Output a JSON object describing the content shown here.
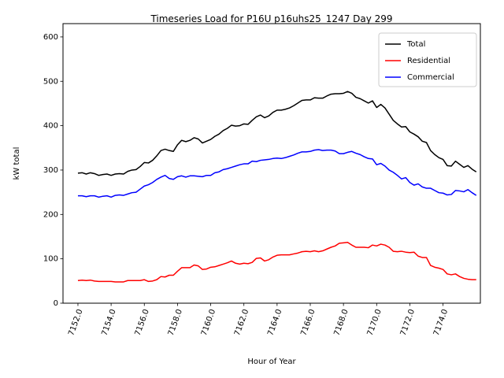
{
  "chart_data": {
    "type": "line",
    "title": "Timeseries Load for P16U p16uhs25_1247  Day 299",
    "xlabel": "Hour of Year",
    "ylabel": "kW total",
    "xlim": [
      7151.1,
      7176.25
    ],
    "ylim": [
      0,
      630
    ],
    "xticks": [
      7152,
      7154,
      7156,
      7158,
      7160,
      7162,
      7164,
      7166,
      7168,
      7170,
      7172,
      7174
    ],
    "xtick_labels": [
      "7152.0",
      "7154.0",
      "7156.0",
      "7158.0",
      "7160.0",
      "7162.0",
      "7164.0",
      "7166.0",
      "7168.0",
      "7170.0",
      "7172.0",
      "7174.0"
    ],
    "yticks": [
      0,
      100,
      200,
      300,
      400,
      500,
      600
    ],
    "ytick_labels": [
      "0",
      "100",
      "200",
      "300",
      "400",
      "500",
      "600"
    ],
    "legend_position": "top-right",
    "x_start": 7152.0,
    "x_step": 0.25,
    "series": [
      {
        "name": "Total",
        "color": "#000000",
        "values": [
          293,
          294,
          291,
          294,
          292,
          288,
          290,
          291,
          288,
          291,
          292,
          291,
          297,
          300,
          301,
          308,
          317,
          316,
          322,
          332,
          344,
          347,
          344,
          342,
          357,
          367,
          364,
          367,
          373,
          370,
          361,
          365,
          369,
          376,
          381,
          389,
          394,
          401,
          399,
          400,
          404,
          403,
          412,
          420,
          424,
          418,
          422,
          430,
          435,
          435,
          437,
          440,
          445,
          451,
          457,
          458,
          458,
          463,
          462,
          462,
          467,
          471,
          472,
          472,
          473,
          477,
          473,
          464,
          461,
          456,
          451,
          456,
          441,
          448,
          440,
          426,
          412,
          404,
          397,
          398,
          386,
          381,
          375,
          365,
          362,
          344,
          335,
          328,
          324,
          310,
          309,
          320,
          313,
          306,
          310,
          302,
          296
        ]
      },
      {
        "name": "Residential",
        "color": "#ff0000",
        "values": [
          51,
          52,
          51,
          52,
          50,
          49,
          49,
          49,
          49,
          48,
          48,
          48,
          51,
          51,
          51,
          51,
          53,
          49,
          50,
          53,
          60,
          59,
          63,
          63,
          72,
          80,
          80,
          80,
          86,
          84,
          76,
          77,
          81,
          82,
          85,
          88,
          91,
          95,
          90,
          88,
          90,
          89,
          92,
          101,
          102,
          95,
          98,
          104,
          108,
          109,
          109,
          109,
          111,
          113,
          116,
          117,
          116,
          118,
          116,
          118,
          122,
          126,
          129,
          135,
          136,
          137,
          131,
          126,
          126,
          126,
          125,
          131,
          129,
          133,
          131,
          126,
          117,
          116,
          117,
          115,
          114,
          115,
          106,
          103,
          103,
          85,
          81,
          79,
          76,
          66,
          64,
          66,
          60,
          56,
          54,
          53,
          53
        ]
      },
      {
        "name": "Commercial",
        "color": "#0000ff",
        "values": [
          242,
          242,
          240,
          242,
          242,
          239,
          241,
          242,
          239,
          243,
          244,
          243,
          246,
          249,
          250,
          257,
          264,
          267,
          272,
          279,
          284,
          288,
          281,
          279,
          285,
          287,
          284,
          287,
          287,
          286,
          285,
          288,
          288,
          294,
          296,
          301,
          303,
          306,
          309,
          312,
          314,
          314,
          320,
          319,
          322,
          323,
          324,
          326,
          327,
          326,
          328,
          331,
          334,
          338,
          341,
          341,
          342,
          345,
          346,
          344,
          345,
          345,
          343,
          337,
          337,
          340,
          342,
          338,
          335,
          330,
          326,
          325,
          312,
          315,
          309,
          300,
          295,
          288,
          280,
          283,
          272,
          266,
          269,
          262,
          259,
          259,
          254,
          249,
          248,
          244,
          245,
          254,
          253,
          251,
          256,
          249,
          243
        ]
      }
    ]
  }
}
